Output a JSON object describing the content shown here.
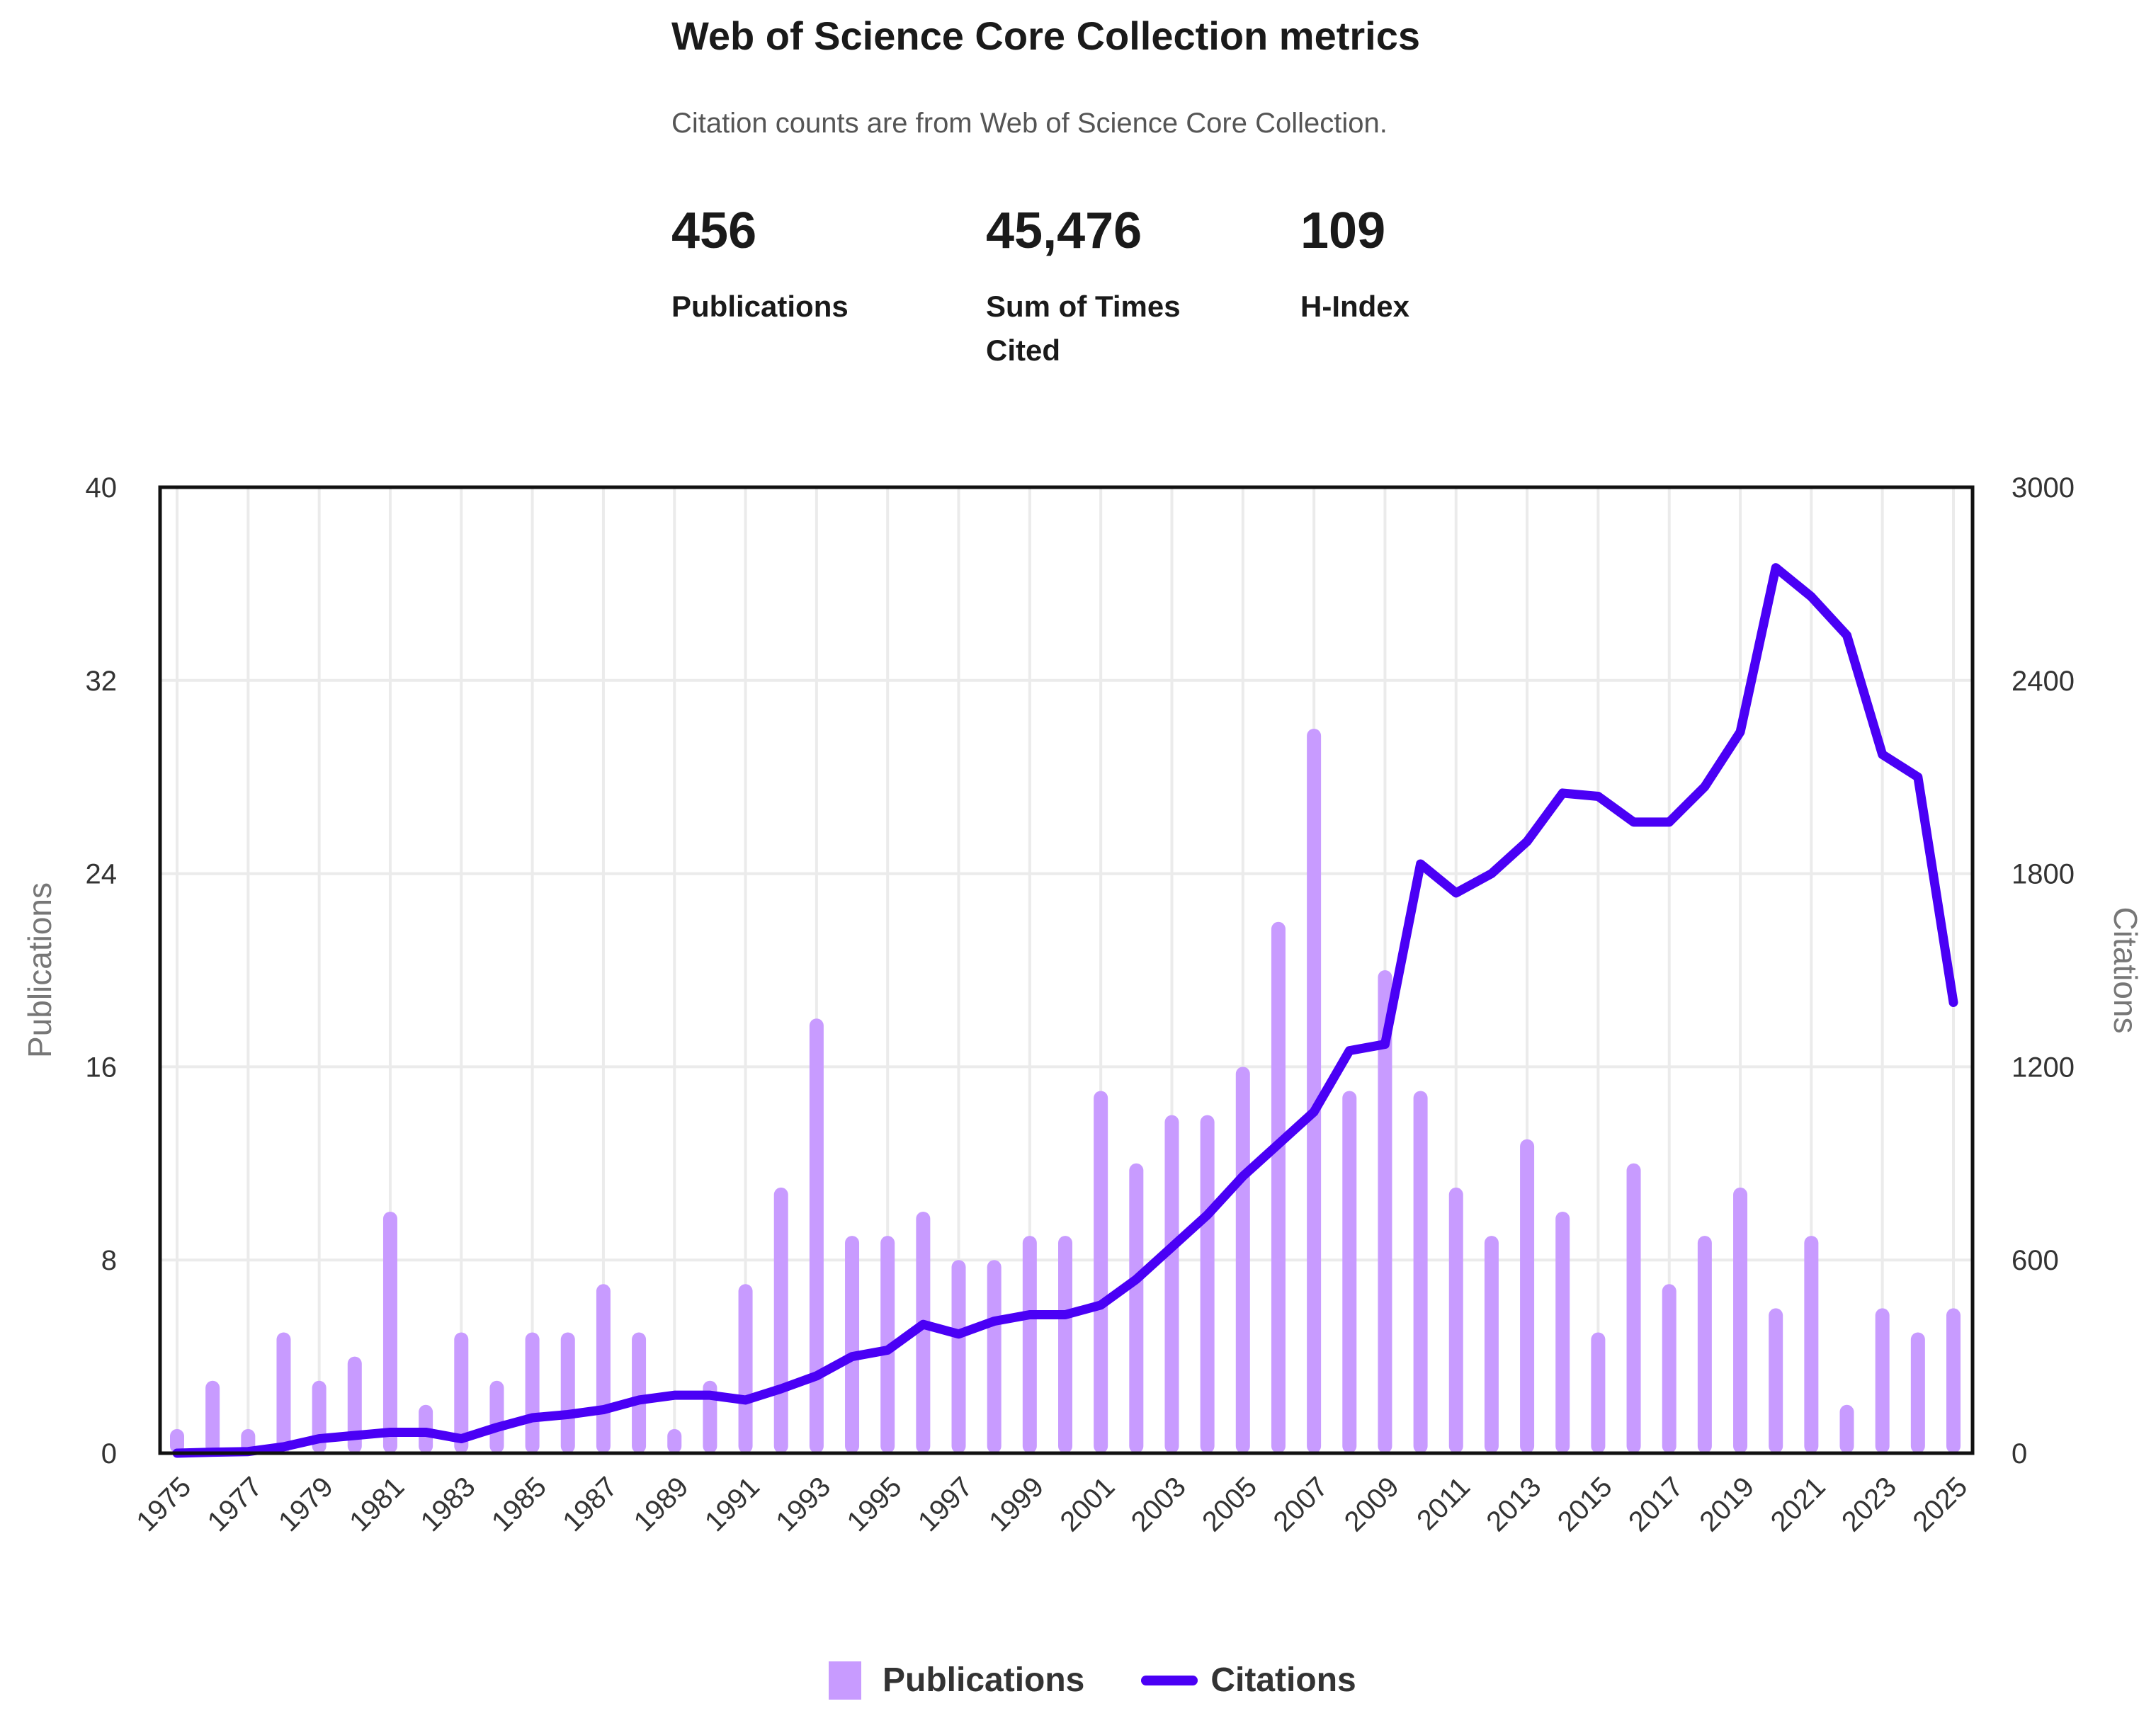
{
  "header": {
    "title": "Web of Science Core Collection metrics",
    "subtitle": "Citation counts are from Web of Science Core Collection."
  },
  "metrics": [
    {
      "value": "456",
      "label": "Publications"
    },
    {
      "value": "45,476",
      "label": "Sum of Times Cited"
    },
    {
      "value": "109",
      "label": "H-Index"
    }
  ],
  "chart_data": {
    "type": "bar+line",
    "x": [
      1975,
      1976,
      1977,
      1978,
      1979,
      1980,
      1981,
      1982,
      1983,
      1984,
      1985,
      1986,
      1987,
      1988,
      1989,
      1990,
      1991,
      1992,
      1993,
      1994,
      1995,
      1996,
      1997,
      1998,
      1999,
      2000,
      2001,
      2002,
      2003,
      2004,
      2005,
      2006,
      2007,
      2008,
      2009,
      2010,
      2011,
      2012,
      2013,
      2014,
      2015,
      2016,
      2017,
      2018,
      2019,
      2020,
      2021,
      2022,
      2023,
      2024,
      2025
    ],
    "x_tick_labels": [
      "1975",
      "1977",
      "1979",
      "1981",
      "1983",
      "1985",
      "1987",
      "1989",
      "1991",
      "1993",
      "1995",
      "1997",
      "1999",
      "2001",
      "2003",
      "2005",
      "2007",
      "2009",
      "2011",
      "2013",
      "2015",
      "2017",
      "2019",
      "2021",
      "2023",
      "2025"
    ],
    "series": [
      {
        "name": "Publications",
        "type": "bar",
        "axis": "left",
        "color": "#c89bff",
        "values": [
          1,
          3,
          1,
          5,
          3,
          4,
          10,
          2,
          5,
          3,
          5,
          5,
          7,
          5,
          1,
          3,
          7,
          11,
          18,
          9,
          9,
          10,
          8,
          8,
          9,
          9,
          15,
          12,
          14,
          14,
          16,
          22,
          30,
          15,
          20,
          15,
          11,
          9,
          13,
          10,
          5,
          12,
          7,
          9,
          11,
          6,
          9,
          2,
          6,
          5,
          6
        ]
      },
      {
        "name": "Citations",
        "type": "line",
        "axis": "right",
        "color": "#4a00f5",
        "values": [
          0,
          3,
          5,
          20,
          45,
          55,
          65,
          65,
          45,
          80,
          110,
          120,
          135,
          165,
          180,
          180,
          165,
          200,
          240,
          300,
          320,
          400,
          370,
          410,
          430,
          430,
          460,
          540,
          640,
          740,
          860,
          960,
          1060,
          1250,
          1270,
          1830,
          1740,
          1800,
          1900,
          2050,
          2040,
          1960,
          1960,
          2070,
          2240,
          2750,
          2660,
          2540,
          2170,
          2100,
          1400
        ]
      }
    ],
    "ylabel": "Publications",
    "ylim": [
      0,
      40
    ],
    "yticks": [
      "0",
      "8",
      "16",
      "24",
      "32",
      "40"
    ],
    "y2label": "Citations",
    "y2lim": [
      0,
      3000
    ],
    "y2ticks": [
      "0",
      "600",
      "1200",
      "1800",
      "2400",
      "3000"
    ],
    "grid": true,
    "legend": "bottom-center"
  }
}
